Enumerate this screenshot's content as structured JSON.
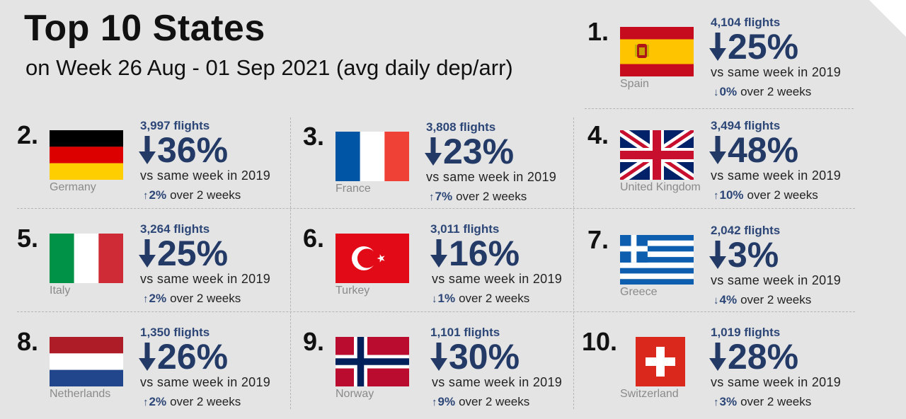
{
  "title": "Top 10 States",
  "subtitle": "on Week 26 Aug - 01 Sep 2021 (avg daily dep/arr)",
  "colors": {
    "accent": "#233a66",
    "flights": "#2c4677",
    "country": "#8a8a8a"
  },
  "states": [
    {
      "rank": "1.",
      "country": "Spain",
      "flights": "4,104 flights",
      "change_dir": "down",
      "change": "25%",
      "comparison": "vs same week in 2019",
      "trend_dir": "down",
      "trend_pct": "0%",
      "trend_text": "over 2 weeks",
      "flag": "spain-flag"
    },
    {
      "rank": "2.",
      "country": "Germany",
      "flights": "3,997 flights",
      "change_dir": "down",
      "change": "36%",
      "comparison": "vs same week in 2019",
      "trend_dir": "up",
      "trend_pct": "2%",
      "trend_text": "over 2 weeks",
      "flag": "germany-flag"
    },
    {
      "rank": "3.",
      "country": "France",
      "flights": "3,808 flights",
      "change_dir": "down",
      "change": "23%",
      "comparison": "vs same week in 2019",
      "trend_dir": "up",
      "trend_pct": "7%",
      "trend_text": "over 2 weeks",
      "flag": "france-flag"
    },
    {
      "rank": "4.",
      "country": "United Kingdom",
      "flights": "3,494 flights",
      "change_dir": "down",
      "change": "48%",
      "comparison": "vs same week in 2019",
      "trend_dir": "up",
      "trend_pct": "10%",
      "trend_text": "over 2 weeks",
      "flag": "uk-flag"
    },
    {
      "rank": "5.",
      "country": "Italy",
      "flights": "3,264 flights",
      "change_dir": "down",
      "change": "25%",
      "comparison": "vs same week in 2019",
      "trend_dir": "up",
      "trend_pct": "2%",
      "trend_text": "over 2 weeks",
      "flag": "italy-flag"
    },
    {
      "rank": "6.",
      "country": "Turkey",
      "flights": "3,011 flights",
      "change_dir": "down",
      "change": "16%",
      "comparison": "vs same week in 2019",
      "trend_dir": "down",
      "trend_pct": "1%",
      "trend_text": "over 2 weeks",
      "flag": "turkey-flag"
    },
    {
      "rank": "7.",
      "country": "Greece",
      "flights": "2,042 flights",
      "change_dir": "down",
      "change": "3%",
      "comparison": "vs same week in 2019",
      "trend_dir": "down",
      "trend_pct": "4%",
      "trend_text": "over 2 weeks",
      "flag": "greece-flag"
    },
    {
      "rank": "8.",
      "country": "Netherlands",
      "flights": "1,350 flights",
      "change_dir": "down",
      "change": "26%",
      "comparison": "vs same week in 2019",
      "trend_dir": "up",
      "trend_pct": "2%",
      "trend_text": "over 2 weeks",
      "flag": "netherlands-flag"
    },
    {
      "rank": "9.",
      "country": "Norway",
      "flights": "1,101 flights",
      "change_dir": "down",
      "change": "30%",
      "comparison": "vs same week in 2019",
      "trend_dir": "up",
      "trend_pct": "9%",
      "trend_text": "over 2 weeks",
      "flag": "norway-flag"
    },
    {
      "rank": "10.",
      "country": "Switzerland",
      "flights": "1,019 flights",
      "change_dir": "down",
      "change": "28%",
      "comparison": "vs same week in 2019",
      "trend_dir": "up",
      "trend_pct": "3%",
      "trend_text": "over 2 weeks",
      "flag": "switzerland-flag"
    }
  ]
}
